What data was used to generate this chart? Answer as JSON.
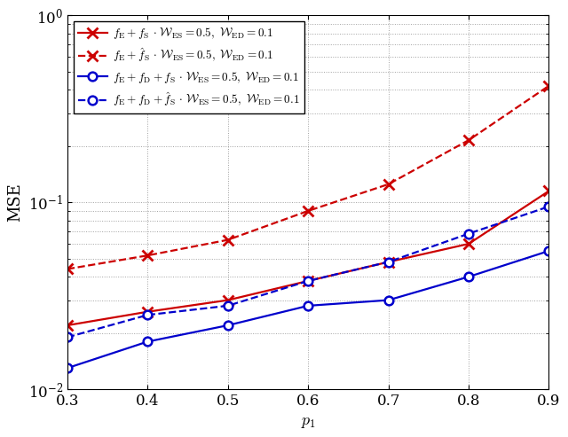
{
  "x": [
    0.3,
    0.4,
    0.5,
    0.6,
    0.7,
    0.8,
    0.9
  ],
  "red_solid": [
    0.022,
    0.026,
    0.03,
    0.038,
    0.048,
    0.06,
    0.115
  ],
  "red_dashed": [
    0.044,
    0.052,
    0.063,
    0.09,
    0.125,
    0.215,
    0.42
  ],
  "blue_solid": [
    0.013,
    0.018,
    0.022,
    0.028,
    0.03,
    0.04,
    0.055
  ],
  "blue_dashed": [
    0.019,
    0.025,
    0.028,
    0.038,
    0.048,
    0.068,
    0.095
  ],
  "red_color": "#cc0000",
  "blue_color": "#0000cc",
  "figsize": [
    6.4,
    4.93
  ],
  "dpi": 100,
  "xlim": [
    0.3,
    0.9
  ],
  "ylim": [
    0.01,
    1.0
  ],
  "xticks": [
    0.3,
    0.4,
    0.5,
    0.6,
    0.7,
    0.8,
    0.9
  ],
  "xlabel": "$p_1$",
  "ylabel": "MSE",
  "legend_labels": [
    "$f_{\\rm E} + f_{\\rm S}$ $\\cdot$ $\\mathcal{W}_{\\rm ES} = 0.5,\\ \\mathcal{W}_{\\rm ED} = 0.1$",
    "$f_{\\rm E} + \\hat{f}_{\\rm S}$ $\\cdot$ $\\mathcal{W}_{\\rm ES} = 0.5,\\ \\mathcal{W}_{\\rm ED} = 0.1$",
    "$f_{\\rm E} + f_{\\rm D} + f_{\\rm S}$ $\\cdot$ $\\mathcal{W}_{\\rm ES} = 0.5,\\ \\mathcal{W}_{\\rm ED} = 0.1$",
    "$f_{\\rm E} + f_{\\rm D} + \\hat{f}_{\\rm S}$ $\\cdot$ $\\mathcal{W}_{\\rm ES} = 0.5,\\ \\mathcal{W}_{\\rm ED} = 0.1$"
  ]
}
